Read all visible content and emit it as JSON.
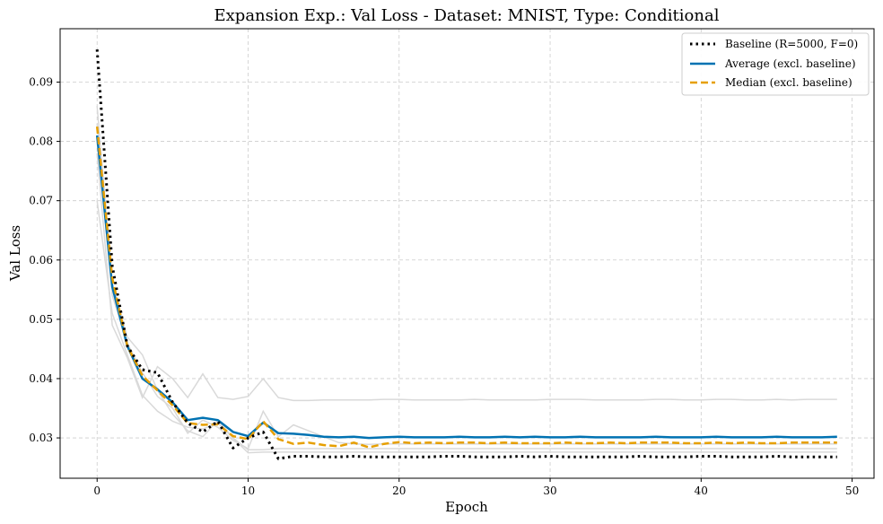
{
  "chart_data": {
    "type": "line",
    "title": "Expansion Exp.:  Val Loss - Dataset: MNIST, Type: Conditional",
    "xlabel": "Epoch",
    "ylabel": "Val Loss",
    "xlim": [
      -2.45,
      51.45
    ],
    "ylim": [
      0.0232,
      0.099
    ],
    "xticks": [
      0,
      10,
      20,
      30,
      40,
      50
    ],
    "yticks": [
      0.03,
      0.04,
      0.05,
      0.06,
      0.07,
      0.08,
      0.09
    ],
    "yticklabels": [
      "0.03",
      "0.04",
      "0.05",
      "0.06",
      "0.07",
      "0.08",
      "0.09"
    ],
    "grid": true,
    "legend_position": "top-right",
    "x": [
      0,
      1,
      2,
      3,
      4,
      5,
      6,
      7,
      8,
      9,
      10,
      11,
      12,
      13,
      14,
      15,
      16,
      17,
      18,
      19,
      20,
      21,
      22,
      23,
      24,
      25,
      26,
      27,
      28,
      29,
      30,
      31,
      32,
      33,
      34,
      35,
      36,
      37,
      38,
      39,
      40,
      41,
      42,
      43,
      44,
      45,
      46,
      47,
      48,
      49
    ],
    "series": [
      {
        "name": "Baseline (R=5000, F=0)",
        "color": "#000000",
        "style": "dotted",
        "values": [
          0.0955,
          0.059,
          0.0455,
          0.0415,
          0.041,
          0.036,
          0.0325,
          0.031,
          0.0328,
          0.0283,
          0.03,
          0.031,
          0.0265,
          0.0269,
          0.0269,
          0.0268,
          0.0268,
          0.0269,
          0.0268,
          0.0268,
          0.0268,
          0.0268,
          0.0268,
          0.0269,
          0.0269,
          0.0268,
          0.0268,
          0.0268,
          0.0269,
          0.0268,
          0.0269,
          0.0268,
          0.0268,
          0.0268,
          0.0268,
          0.0268,
          0.0269,
          0.0268,
          0.0268,
          0.0268,
          0.0269,
          0.0269,
          0.0268,
          0.0268,
          0.0268,
          0.0269,
          0.0268,
          0.0268,
          0.0268,
          0.0268
        ]
      },
      {
        "name": "Average (excl. baseline)",
        "color": "#0072b2",
        "style": "solid",
        "values": [
          0.081,
          0.0555,
          0.0455,
          0.04,
          0.0382,
          0.036,
          0.033,
          0.0334,
          0.033,
          0.031,
          0.0303,
          0.0326,
          0.0308,
          0.0307,
          0.0305,
          0.0302,
          0.0301,
          0.0302,
          0.03,
          0.0301,
          0.0302,
          0.0301,
          0.0301,
          0.0301,
          0.0302,
          0.0301,
          0.0301,
          0.0302,
          0.0301,
          0.0302,
          0.0301,
          0.0301,
          0.0302,
          0.0301,
          0.0301,
          0.0301,
          0.0301,
          0.0302,
          0.0301,
          0.0301,
          0.0301,
          0.0302,
          0.0301,
          0.0301,
          0.0301,
          0.0302,
          0.0301,
          0.0301,
          0.0301,
          0.0302
        ]
      },
      {
        "name": "Median (excl. baseline)",
        "color": "#e69f00",
        "style": "dashed",
        "values": [
          0.0825,
          0.057,
          0.0455,
          0.0405,
          0.038,
          0.0355,
          0.0325,
          0.0322,
          0.0323,
          0.0303,
          0.0298,
          0.0328,
          0.0298,
          0.029,
          0.0292,
          0.0288,
          0.0286,
          0.0292,
          0.0284,
          0.029,
          0.0293,
          0.0291,
          0.0292,
          0.0291,
          0.0292,
          0.0292,
          0.0291,
          0.0292,
          0.0291,
          0.0291,
          0.0291,
          0.0292,
          0.0291,
          0.0291,
          0.0292,
          0.0291,
          0.0292,
          0.0292,
          0.0292,
          0.0291,
          0.0291,
          0.0292,
          0.0291,
          0.0292,
          0.0291,
          0.0291,
          0.0292,
          0.0292,
          0.0292,
          0.0292
        ]
      }
    ],
    "background_series": {
      "color": "#d9d9d9",
      "runs": [
        [
          0.078,
          0.049,
          0.0435,
          0.0368,
          0.042,
          0.04,
          0.0368,
          0.0408,
          0.0368,
          0.0365,
          0.037,
          0.04,
          0.0368,
          0.0363,
          0.0363,
          0.0364,
          0.0364,
          0.0364,
          0.0364,
          0.0365,
          0.0365,
          0.0364,
          0.0364,
          0.0364,
          0.0364,
          0.0365,
          0.0364,
          0.0364,
          0.0364,
          0.0364,
          0.0365,
          0.0365,
          0.0365,
          0.0364,
          0.0364,
          0.0364,
          0.0364,
          0.0365,
          0.0365,
          0.0364,
          0.0364,
          0.0365,
          0.0365,
          0.0364,
          0.0364,
          0.0365,
          0.0364,
          0.0365,
          0.0365,
          0.0365
        ],
        [
          0.07,
          0.051,
          0.044,
          0.0372,
          0.0345,
          0.0328,
          0.0318,
          0.0315,
          0.0325,
          0.03,
          0.0275,
          0.0276,
          0.0276,
          0.0276,
          0.0276,
          0.0276,
          0.0276,
          0.0276,
          0.0276,
          0.0276,
          0.0276,
          0.0276,
          0.0276,
          0.0276,
          0.0276,
          0.0276,
          0.0276,
          0.0276,
          0.0276,
          0.0276,
          0.0276,
          0.0276,
          0.0276,
          0.0276,
          0.0276,
          0.0276,
          0.0276,
          0.0276,
          0.0276,
          0.0276,
          0.0276,
          0.0276,
          0.0276,
          0.0276,
          0.0276,
          0.0276,
          0.0276,
          0.0276,
          0.0276,
          0.0276
        ],
        [
          0.083,
          0.054,
          0.046,
          0.041,
          0.037,
          0.035,
          0.0308,
          0.033,
          0.0318,
          0.0296,
          0.0282,
          0.0345,
          0.0302,
          0.0322,
          0.0312,
          0.0302,
          0.0292,
          0.029,
          0.0289,
          0.029,
          0.029,
          0.029,
          0.029,
          0.029,
          0.029,
          0.029,
          0.029,
          0.029,
          0.029,
          0.029,
          0.029,
          0.029,
          0.029,
          0.029,
          0.029,
          0.029,
          0.029,
          0.029,
          0.029,
          0.029,
          0.029,
          0.029,
          0.029,
          0.029,
          0.029,
          0.029,
          0.029,
          0.029,
          0.029,
          0.029
        ],
        [
          0.086,
          0.056,
          0.047,
          0.044,
          0.038,
          0.034,
          0.0312,
          0.0302,
          0.033,
          0.03,
          0.028,
          0.028,
          0.0282,
          0.0282,
          0.0282,
          0.0282,
          0.0282,
          0.0282,
          0.0282,
          0.0282,
          0.0282,
          0.0282,
          0.0282,
          0.0282,
          0.0282,
          0.0282,
          0.0282,
          0.0282,
          0.0282,
          0.0282,
          0.0282,
          0.0282,
          0.0282,
          0.0282,
          0.0282,
          0.0282,
          0.0282,
          0.0282,
          0.0282,
          0.0282,
          0.0282,
          0.0282,
          0.0282,
          0.0282,
          0.0282,
          0.0282,
          0.0282,
          0.0282,
          0.0282,
          0.0282
        ]
      ]
    }
  }
}
